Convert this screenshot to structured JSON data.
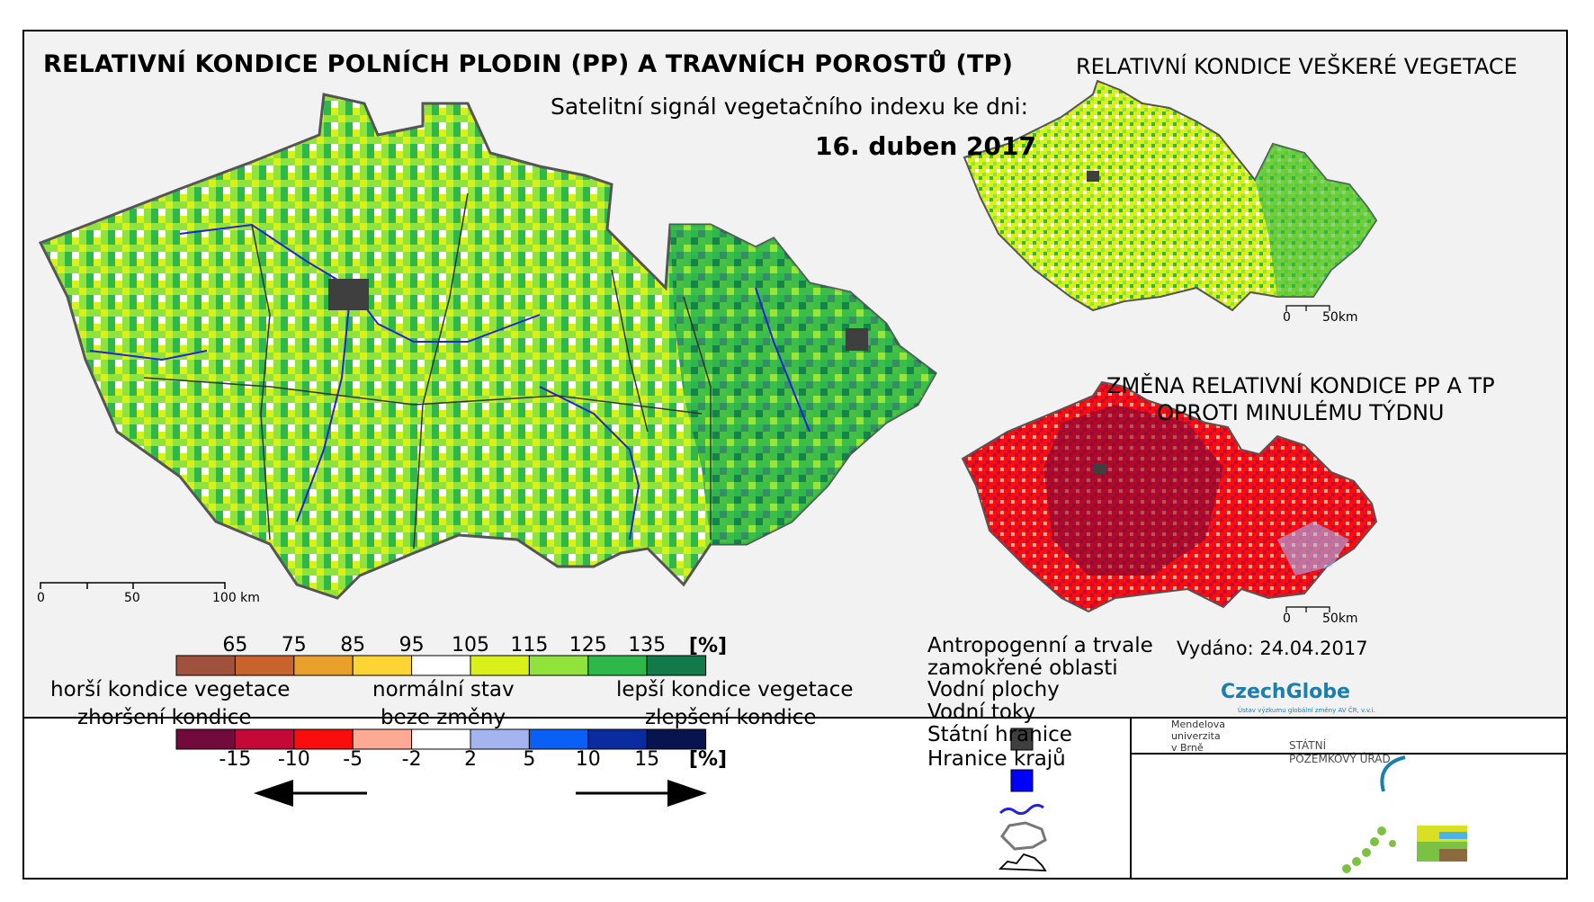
{
  "titles": {
    "main": "RELATIVNÍ KONDICE POLNÍCH PLODIN (PP) A TRAVNÍCH POROSTŮ (TP)",
    "subtitle": "Satelitní signál vegetačního indexu ke dni:",
    "date": "16. duben 2017",
    "vegetation": "RELATIVNÍ KONDICE VEŠKERÉ VEGETACE",
    "change_line1": "ZMĚNA RELATIVNÍ KONDICE PP A TP",
    "change_line2": "OPROTI MINULÉMU TÝDNU"
  },
  "scales": {
    "main": [
      "0",
      "50",
      "100 km"
    ],
    "small": [
      "0",
      "50km"
    ]
  },
  "legend": {
    "top_unit": "[%]",
    "top_values": [
      "65",
      "75",
      "85",
      "95",
      "105",
      "115",
      "125",
      "135"
    ],
    "top_colors": [
      "#a0523d",
      "#c8632c",
      "#e8a02b",
      "#fcd434",
      "#ffffff",
      "#d9f01a",
      "#8fe33a",
      "#2fb84a",
      "#127a4a"
    ],
    "bottom_unit": "[%]",
    "bottom_values": [
      "-15",
      "-10",
      "-5",
      "-2",
      "2",
      "5",
      "10",
      "15"
    ],
    "bottom_colors": [
      "#730a3c",
      "#c40838",
      "#fa0d0d",
      "#fcaa94",
      "#ffffff",
      "#a3b4f0",
      "#0a60f5",
      "#0a2ca0",
      "#08144f"
    ],
    "left_line1": "horší kondice vegetace",
    "left_line2": "zhoršení kondice",
    "center_line1": "normální stav",
    "center_line2": "beze změny",
    "right_line1": "lepší kondice vegetace",
    "right_line2": "zlepšení kondice"
  },
  "map_legend": {
    "anthropogenic_line1": "Antropogenní a trvale",
    "anthropogenic_line2": "zamokřené oblasti",
    "water_bodies": "Vodní plochy",
    "rivers": "Vodní toky",
    "state_border": "Státní hranice",
    "regional_border": "Hranice krajů"
  },
  "footer": {
    "issued": "Vydáno: 24.04.2017",
    "czechglobe": "CzechGlobe",
    "czechglobe_sub": "Ústav výzkumu globální změny AV ČR, v.v.i.",
    "mendel_line1": "Mendelova",
    "mendel_line2": "univerzita",
    "mendel_line3": "v Brně",
    "spu_line1": "STÁTNÍ",
    "spu_line2": "POZEMKOVÝ ÚŘAD"
  },
  "colors": {
    "frame": "#000000",
    "map_background": "#f2f2f2",
    "anthropogenic": "#3f3f3f",
    "water": "#0000ff",
    "river": "#2323d8"
  }
}
